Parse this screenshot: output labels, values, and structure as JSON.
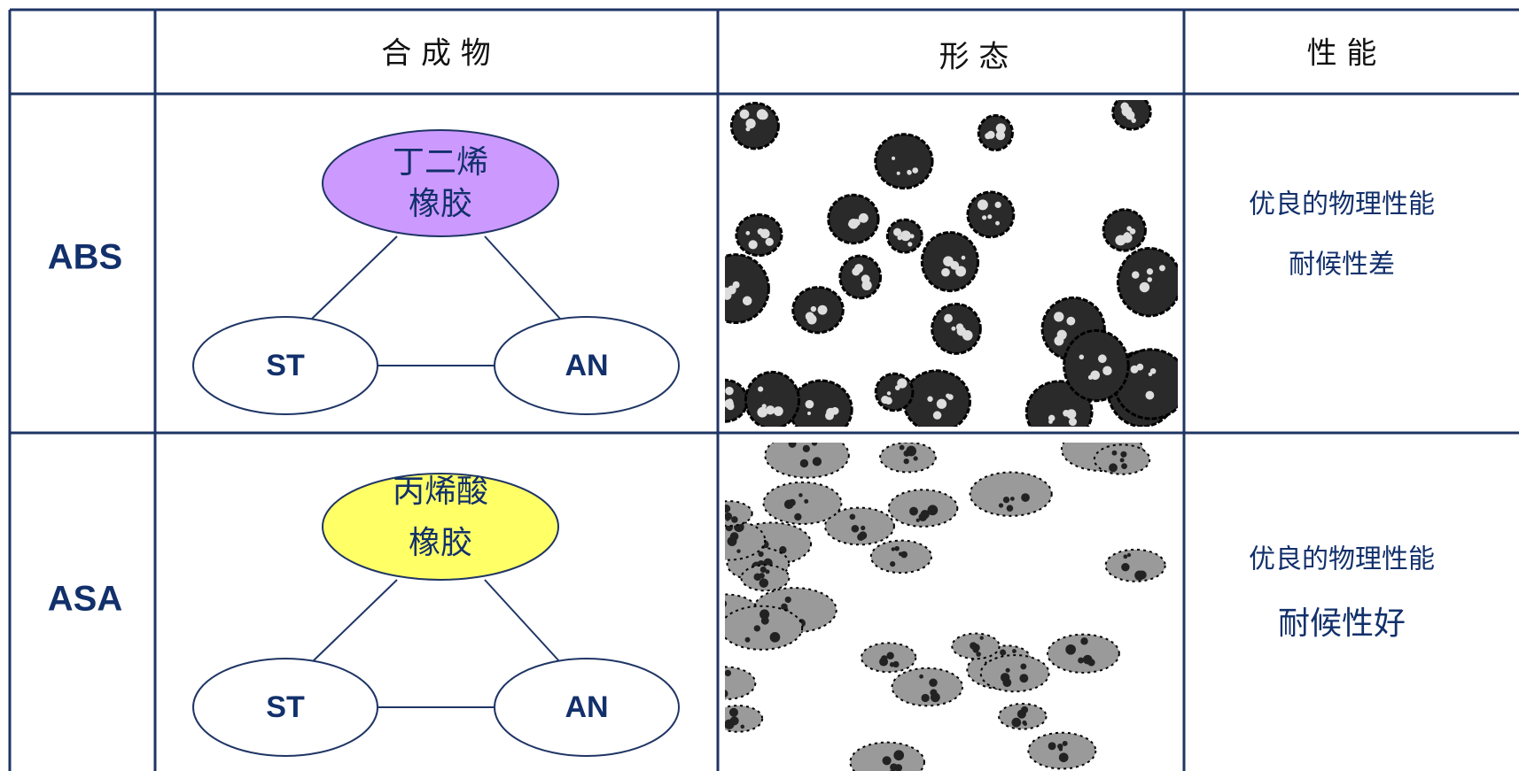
{
  "table": {
    "header": [
      "合 成 物",
      "形 态",
      "性 能"
    ],
    "rows": [
      {
        "name": "ABS",
        "diagram": {
          "rubber": [
            "丁二烯",
            "橡胶"
          ],
          "nodes": [
            "ST",
            "AN"
          ]
        },
        "properties": [
          "优良的物理性能",
          "耐候性差"
        ]
      },
      {
        "name": "ASA",
        "diagram": {
          "rubber": [
            "丙烯酸",
            "橡胶"
          ],
          "nodes": [
            "ST",
            "AN"
          ]
        },
        "properties": [
          "优良的物理性能",
          "耐候性好"
        ]
      }
    ]
  }
}
